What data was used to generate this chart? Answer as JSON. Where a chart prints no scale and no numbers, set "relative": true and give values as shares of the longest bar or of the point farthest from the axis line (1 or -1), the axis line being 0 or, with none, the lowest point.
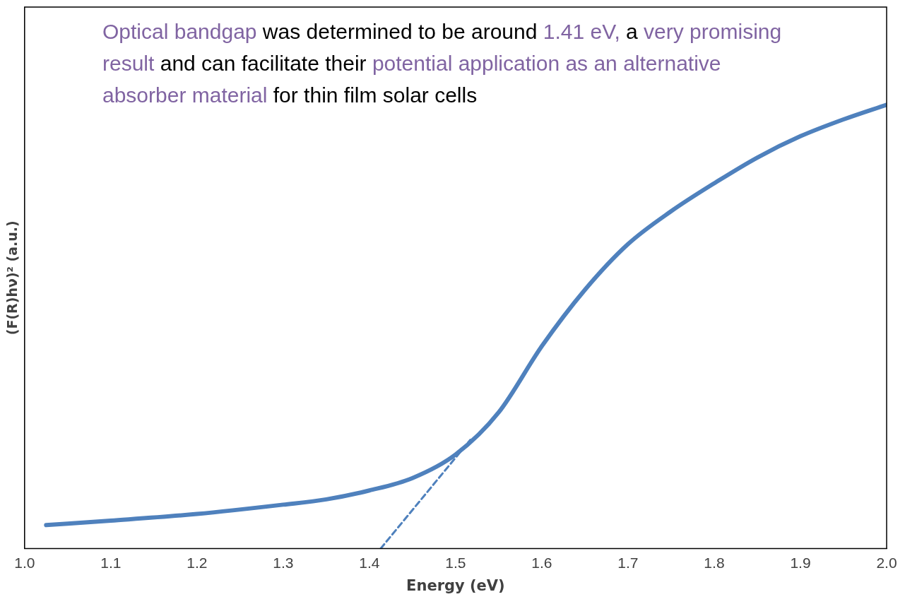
{
  "chart_data": {
    "type": "line",
    "relative": true,
    "xlabel": "Energy (eV)",
    "ylabel": "(F(R)hν)² (a.u.)",
    "xlim": [
      1.0,
      2.0
    ],
    "xticks": [
      {
        "value": 1.0,
        "label": "1.0"
      },
      {
        "value": 1.1,
        "label": "1.1"
      },
      {
        "value": 1.2,
        "label": "1.2"
      },
      {
        "value": 1.3,
        "label": "1.3"
      },
      {
        "value": 1.4,
        "label": "1.4"
      },
      {
        "value": 1.5,
        "label": "1.5"
      },
      {
        "value": 1.6,
        "label": "1.6"
      },
      {
        "value": 1.7,
        "label": "1.7"
      },
      {
        "value": 1.8,
        "label": "1.8"
      },
      {
        "value": 1.9,
        "label": "1.9"
      },
      {
        "value": 2.0,
        "label": "2.0"
      }
    ],
    "grid": false,
    "legend": false,
    "marker": "none",
    "series": [
      {
        "color": "#4f81bd",
        "line_style": "solid",
        "x": [
          1.025,
          1.1,
          1.2,
          1.3,
          1.35,
          1.4,
          1.45,
          1.5,
          1.55,
          1.6,
          1.65,
          1.7,
          1.75,
          1.8,
          1.85,
          1.9,
          1.95,
          2.0
        ],
        "values": [
          0.053,
          0.063,
          0.078,
          0.099,
          0.111,
          0.131,
          0.159,
          0.212,
          0.307,
          0.456,
          0.583,
          0.686,
          0.76,
          0.823,
          0.881,
          0.929,
          0.967,
          1
        ]
      },
      {
        "type": "line",
        "color": "#4f81bd",
        "line_style": "dashed",
        "x": [
          1.413,
          1.517
        ],
        "values": [
          0,
          0.245
        ]
      }
    ],
    "annotations": [
      "Optical bandgap",
      " was determined to be around ",
      "1.41 eV,",
      " a ",
      "very promising result",
      " and can facilitate their ",
      "potential application as an alternative absorber material",
      " for thin film solar cells"
    ]
  }
}
